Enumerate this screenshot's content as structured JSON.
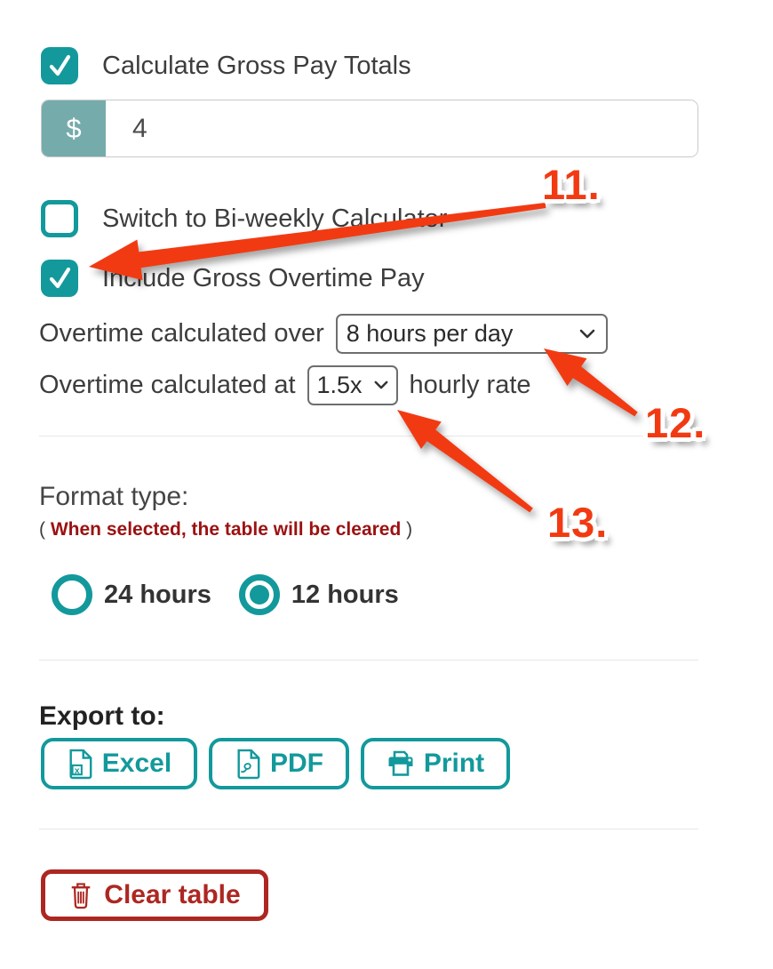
{
  "colors": {
    "teal": "#13999c",
    "muted_teal": "#76abab",
    "annotation_red": "#f23a12",
    "note_dark_red": "#9c1111",
    "clear_button_red": "#ad2722"
  },
  "gross_pay": {
    "label": "Calculate Gross Pay Totals",
    "checked": true
  },
  "rate_input": {
    "prefix": "$",
    "value": "4"
  },
  "biweekly": {
    "label": "Switch to Bi-weekly Calculator",
    "checked": false
  },
  "overtime": {
    "label": "Include Gross Overtime Pay",
    "checked": true
  },
  "overtime_over": {
    "label": "Overtime calculated over",
    "selected": "8 hours per day"
  },
  "overtime_at": {
    "label": "Overtime calculated at",
    "selected": "1.5x",
    "suffix": "hourly rate"
  },
  "format_type": {
    "title": "Format type:",
    "note_open": "(",
    "note": "When selected, the table will be cleared",
    "note_close": ")",
    "options": [
      {
        "label": "24 hours",
        "selected": false
      },
      {
        "label": "12 hours",
        "selected": true
      }
    ]
  },
  "export": {
    "title": "Export to:",
    "buttons": [
      {
        "label": "Excel",
        "icon": "excel-file-icon"
      },
      {
        "label": "PDF",
        "icon": "pdf-file-icon"
      },
      {
        "label": "Print",
        "icon": "printer-icon"
      }
    ]
  },
  "clear_table": {
    "label": "Clear table",
    "icon": "trash-icon"
  },
  "annotations": {
    "n11": "11.",
    "n12": "12.",
    "n13": "13."
  }
}
